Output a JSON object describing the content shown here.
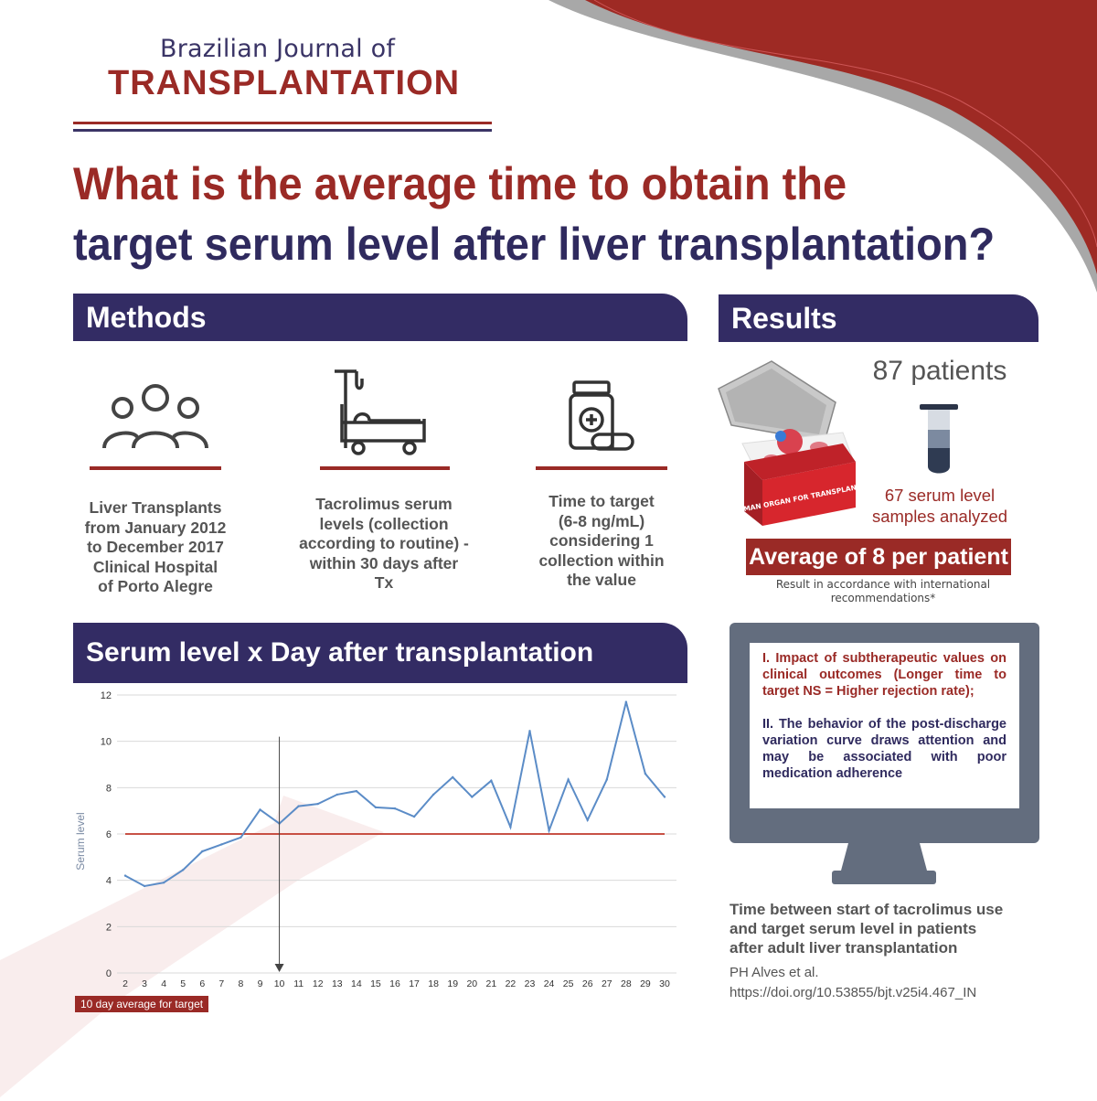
{
  "header": {
    "journal_top": "Brazilian Journal of",
    "journal_main": "TRANSPLANTATION",
    "question_line1": "What is the average time to obtain the",
    "question_line2": "target serum level after liver transplantation?"
  },
  "colors": {
    "brand_red": "#9a2a26",
    "brand_navy": "#332c64",
    "chart_line": "#5b8cc7",
    "target_line": "#c0392b"
  },
  "methods": {
    "title": "Methods",
    "items": [
      {
        "icon": "people-group-icon",
        "lines": [
          "Liver Transplants",
          "from January 2012",
          "to December 2017",
          "Clinical Hospital",
          "of Porto Alegre"
        ]
      },
      {
        "icon": "hospital-bed-iv-icon",
        "lines": [
          "Tacrolimus serum",
          "levels (collection",
          "according to routine) -",
          "within 30 days after",
          "Tx"
        ]
      },
      {
        "icon": "medicine-bottle-pills-icon",
        "lines": [
          "Time to target",
          "(6-8 ng/mL)",
          "considering 1",
          "collection within",
          "the value"
        ]
      }
    ]
  },
  "results": {
    "title": "Results",
    "patients": "87 patients",
    "samples_line1": "67 serum level",
    "samples_line2": "samples analyzed",
    "average": "Average of 8 per patient",
    "note_line1": "Result in accordance with international",
    "note_line2": "recommendations*",
    "cooler_label": "HUMAN ORGAN FOR TRANSPLANT"
  },
  "monitor": {
    "point1": "I. Impact of subtherapeutic values on clinical outcomes (Longer time to target NS = Higher rejection rate);",
    "point2": "II. The behavior of the post-discharge variation curve draws attention and may be associated with poor medication adherence"
  },
  "citation": {
    "title_lines": [
      "Time between start of tacrolimus use",
      "and target serum level in patients",
      "after adult liver transplantation"
    ],
    "authors": "PH Alves et al.",
    "doi": "https://doi.org/10.53855/bjt.v25i4.467_IN"
  },
  "chart_section": {
    "title": "Serum level x Day after transplantation",
    "target_label": "10 day average for target"
  },
  "chart_data": {
    "type": "line",
    "title": "Serum level x Day after transplantation",
    "xlabel": "",
    "ylabel": "Serum level",
    "x": [
      2,
      3,
      4,
      5,
      6,
      7,
      8,
      9,
      10,
      11,
      12,
      13,
      14,
      15,
      16,
      17,
      18,
      19,
      20,
      21,
      22,
      23,
      24,
      25,
      26,
      27,
      28,
      29,
      30
    ],
    "x_tick_labels": [
      "2",
      "3",
      "4",
      "5",
      "6",
      "7",
      "8",
      "9",
      "10",
      "11",
      "12",
      "13",
      "14",
      "15",
      "16",
      "17",
      "18",
      "19",
      "20",
      "21",
      "22",
      "23",
      "24",
      "25",
      "26",
      "27",
      "28",
      "29",
      "30"
    ],
    "series": [
      {
        "values": [
          4.2,
          3.75,
          3.9,
          4.45,
          5.25,
          5.55,
          5.85,
          7.05,
          6.45,
          7.2,
          7.3,
          7.7,
          7.85,
          7.15,
          7.1,
          6.75,
          7.7,
          8.45,
          7.6,
          8.3,
          6.3,
          10.45,
          6.15,
          8.35,
          6.6,
          8.35,
          11.7,
          8.6,
          7.6
        ]
      }
    ],
    "ylim": [
      0,
      12
    ],
    "y_ticks": [
      0,
      2,
      4,
      6,
      8,
      10,
      12
    ],
    "reference_line": {
      "y": 6
    },
    "marker": {
      "x": 10,
      "label": "10 day average for target"
    },
    "grid": "horizontal",
    "legend": "none"
  }
}
